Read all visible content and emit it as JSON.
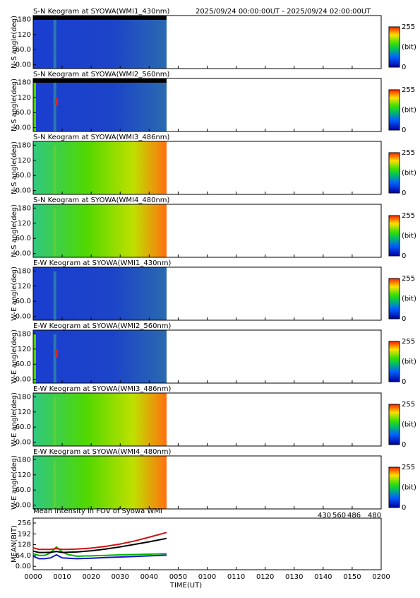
{
  "header": {
    "title": "S-N Keogram at SYOWA(WMI1_430nm)",
    "period": "2025/09/24 00:00:00UT - 2025/09/24 02:00:00UT"
  },
  "keogram_yticks": [
    {
      "value": 0,
      "label": "0.00"
    },
    {
      "value": 60,
      "label": "60.0"
    },
    120,
    180
  ],
  "keogram_ylim": [
    -15,
    195
  ],
  "colorbar": {
    "ticks": [
      0,
      255
    ],
    "unit": "(bit)"
  },
  "panels": [
    {
      "title": null,
      "ylabel": "N-S angle(deg)"
    },
    {
      "title": "S-N Keogram at SYOWA(WMI2_560nm)",
      "ylabel": "N-S angle(deg)"
    },
    {
      "title": "S-N Keogram at SYOWA(WMI3_486nm)",
      "ylabel": "N-S angle(deg)"
    },
    {
      "title": "S-N Keogram at SYOWA(WMI4_480nm)",
      "ylabel": "N-S angle(deg)"
    },
    {
      "title": "E-W Keogram at SYOWA(WMI1_430nm)",
      "ylabel": "W-E angle(deg)"
    },
    {
      "title": "E-W Keogram at SYOWA(WMI2_560nm)",
      "ylabel": "W-E angle(deg)"
    },
    {
      "title": "E-W Keogram at SYOWA(WMI3_486nm)",
      "ylabel": "W-E angle(deg)"
    },
    {
      "title": "E-W Keogram at SYOWA(WMI4_480nm)",
      "ylabel": "W-E angle(deg)"
    }
  ],
  "chart_data": {
    "type": "line",
    "title": "Mean intensity in FOV of Syowa WMI",
    "x_label": "TIME(UT)",
    "y_label": "MEAN(BIT)",
    "x": [
      0,
      2,
      4,
      6,
      8,
      10,
      12,
      15,
      20,
      25,
      30,
      35,
      40,
      46
    ],
    "series": [
      {
        "name": "430",
        "color": "#1414c8",
        "values": [
          60,
          45,
          45,
          50,
          68,
          50,
          48,
          45,
          48,
          52,
          55,
          58,
          62,
          66
        ]
      },
      {
        "name": "560",
        "color": "#00b400",
        "values": [
          75,
          65,
          65,
          80,
          115,
          85,
          70,
          60,
          62,
          65,
          68,
          70,
          72,
          75
        ]
      },
      {
        "name": "486",
        "color": "#d01010",
        "values": [
          110,
          100,
          100,
          100,
          105,
          100,
          100,
          102,
          108,
          118,
          132,
          150,
          172,
          200
        ]
      },
      {
        "name": "480",
        "color": "#000000",
        "values": [
          90,
          82,
          82,
          83,
          88,
          82,
          83,
          85,
          92,
          102,
          115,
          130,
          145,
          165
        ]
      }
    ],
    "xlim": [
      0,
      120
    ],
    "xticks": [
      {
        "value": 0,
        "label": "0000"
      },
      {
        "value": 10,
        "label": "0010"
      },
      {
        "value": 20,
        "label": "0020"
      },
      {
        "value": 30,
        "label": "0030"
      },
      {
        "value": 40,
        "label": "0040"
      },
      {
        "value": 50,
        "label": "0050"
      },
      {
        "value": 60,
        "label": "0100"
      },
      {
        "value": 70,
        "label": "0110"
      },
      {
        "value": 80,
        "label": "0120"
      },
      {
        "value": 90,
        "label": "0130"
      },
      {
        "value": 100,
        "label": "0140"
      },
      {
        "value": 110,
        "label": "0150"
      },
      {
        "value": 120,
        "label": "0200"
      }
    ],
    "ylim": [
      -20,
      285
    ],
    "yticks": [
      {
        "value": 0,
        "label": "0.00"
      },
      {
        "value": 64,
        "label": "64.0"
      },
      128,
      192,
      256
    ]
  }
}
